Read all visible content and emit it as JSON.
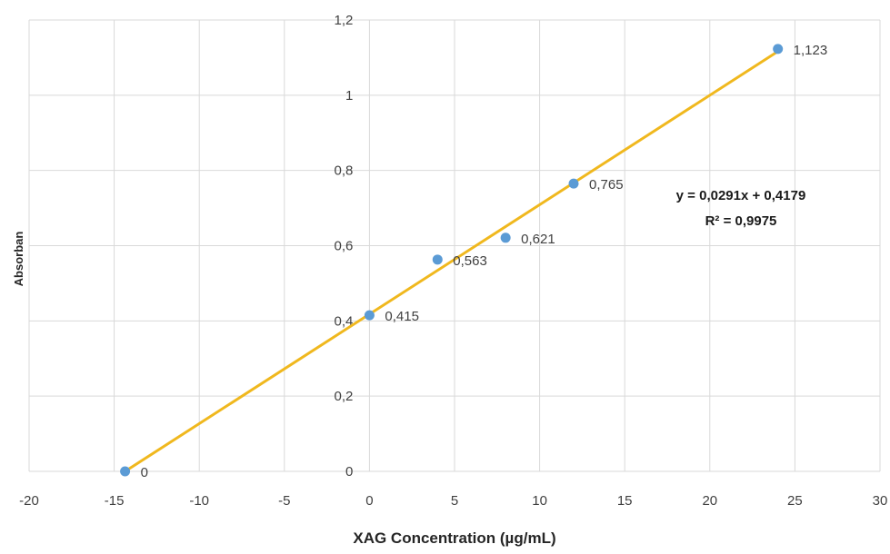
{
  "chart_data": {
    "type": "scatter",
    "title": "",
    "xlabel": "XAG Concentration (µg/mL)",
    "ylabel": "Absorban",
    "xlim": [
      -20,
      30
    ],
    "ylim": [
      0,
      1.2
    ],
    "x_ticks": [
      "-20",
      "-15",
      "-10",
      "-5",
      "0",
      "5",
      "10",
      "15",
      "20",
      "25",
      "30"
    ],
    "y_ticks": [
      "0",
      "0,2",
      "0,4",
      "0,6",
      "0,8",
      "1",
      "1,2"
    ],
    "grid": true,
    "legend": "none",
    "points": [
      {
        "x": -14.36,
        "y": 0,
        "label": "0"
      },
      {
        "x": 0,
        "y": 0.415,
        "label": "0,415"
      },
      {
        "x": 4,
        "y": 0.563,
        "label": "0,563"
      },
      {
        "x": 8,
        "y": 0.621,
        "label": "0,621"
      },
      {
        "x": 12,
        "y": 0.765,
        "label": "0,765"
      },
      {
        "x": 24,
        "y": 1.123,
        "label": "1,123"
      }
    ],
    "trendline": {
      "slope": 0.0291,
      "intercept": 0.4179,
      "x_range": [
        -14.36,
        24
      ],
      "equation": "y = 0,0291x + 0,4179",
      "r_squared": "R² = 0,9975",
      "color": "#f0b81e"
    },
    "marker_color": "#5b9bd5"
  }
}
